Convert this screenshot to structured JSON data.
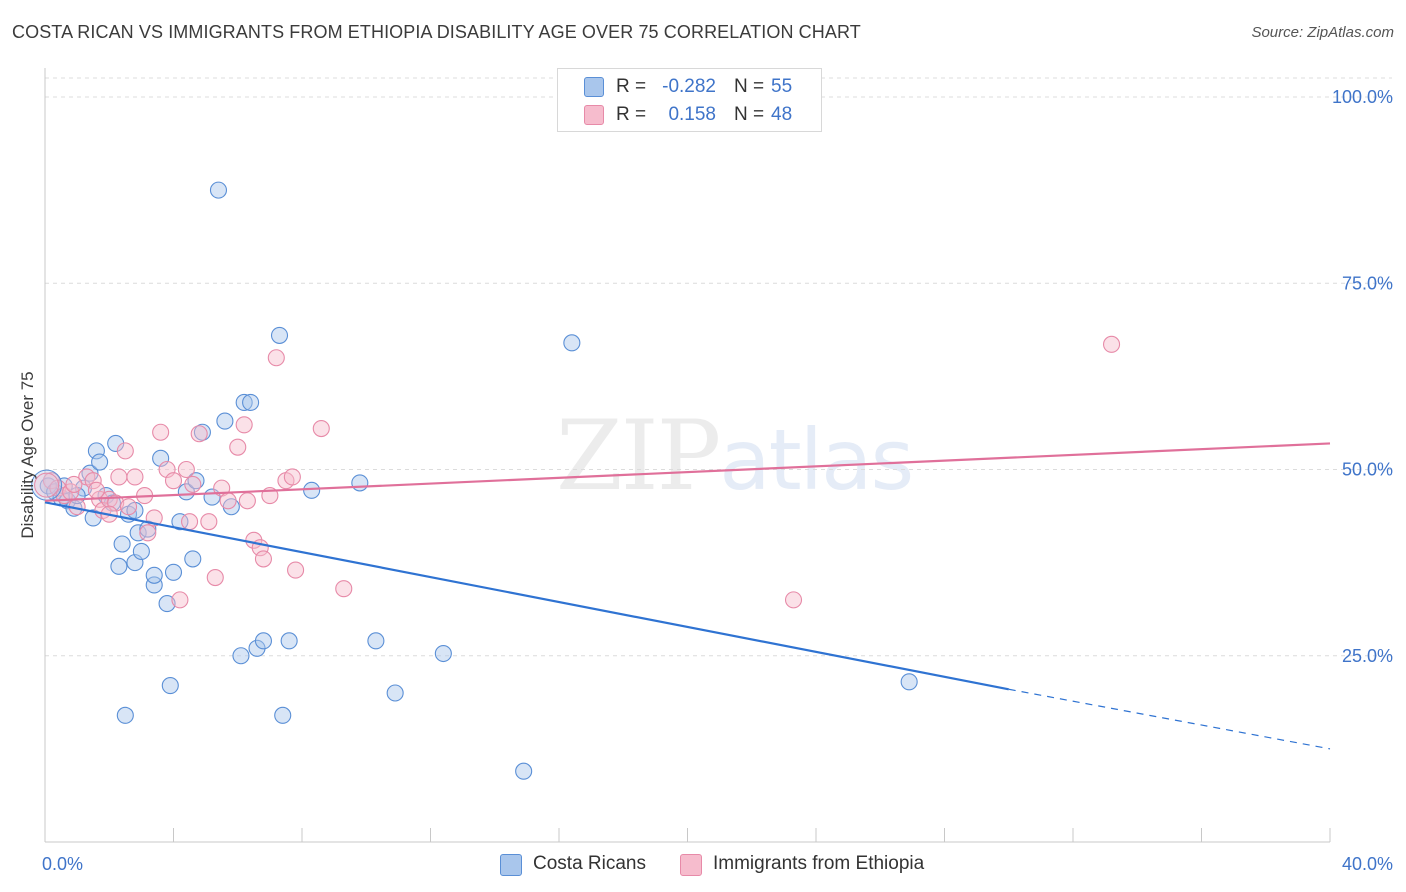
{
  "header": {
    "title": "COSTA RICAN VS IMMIGRANTS FROM ETHIOPIA DISABILITY AGE OVER 75 CORRELATION CHART",
    "source": "Source: ZipAtlas.com"
  },
  "watermark": {
    "zip": "ZIP",
    "atlas": "atlas"
  },
  "legend_top": {
    "rows": [
      {
        "r_label": "R =",
        "r_value": "-0.282",
        "n_label": "N =",
        "n_value": "55"
      },
      {
        "r_label": "R =",
        "r_value": "0.158",
        "n_label": "N =",
        "n_value": "48"
      }
    ]
  },
  "legend_bottom": {
    "items": [
      {
        "label": "Costa Ricans"
      },
      {
        "label": "Immigrants from Ethiopia"
      }
    ]
  },
  "colors": {
    "blue_fill": "#a9c6ec",
    "blue_stroke": "#5a8fd6",
    "blue_line": "#2f73d2",
    "pink_fill": "#f6bccd",
    "pink_stroke": "#e78aa8",
    "pink_line": "#e0709a",
    "grid": "#dcdcdc",
    "axis_text": "#3f74c9"
  },
  "chart_data": {
    "type": "scatter",
    "title": "COSTA RICAN VS IMMIGRANTS FROM ETHIOPIA DISABILITY AGE OVER 75 CORRELATION CHART",
    "xlabel": "",
    "ylabel": "Disability Age Over 75",
    "xlim": [
      0,
      40
    ],
    "ylim": [
      0,
      105
    ],
    "x_tick_labels": [
      {
        "value": 0,
        "label": "0.0%"
      },
      {
        "value": 40,
        "label": "40.0%"
      }
    ],
    "y_tick_labels": [
      {
        "value": 25,
        "label": "25.0%"
      },
      {
        "value": 50,
        "label": "50.0%"
      },
      {
        "value": 75,
        "label": "75.0%"
      },
      {
        "value": 100,
        "label": "100.0%"
      }
    ],
    "x_minor_ticks": [
      0,
      4,
      8,
      12,
      16,
      20,
      24,
      28,
      32,
      36,
      40
    ],
    "grid": true,
    "series": [
      {
        "name": "Costa Ricans",
        "color": "blue",
        "r": -0.282,
        "n": 55,
        "trend": {
          "x_start": 0,
          "y_start": 45.6,
          "x_solid_end": 30,
          "y_solid_end": 20.5,
          "x_end": 40,
          "y_end": 12.5
        },
        "points": [
          [
            0.1,
            47.8
          ],
          [
            0.3,
            47.0
          ],
          [
            0.5,
            46.2
          ],
          [
            0.7,
            45.8
          ],
          [
            0.9,
            44.8
          ],
          [
            1.2,
            47.5
          ],
          [
            1.4,
            49.5
          ],
          [
            1.5,
            43.5
          ],
          [
            1.6,
            52.5
          ],
          [
            1.7,
            51.0
          ],
          [
            1.9,
            46.5
          ],
          [
            2.1,
            45.5
          ],
          [
            2.2,
            53.5
          ],
          [
            2.3,
            37.0
          ],
          [
            2.4,
            40.0
          ],
          [
            2.5,
            17.0
          ],
          [
            2.6,
            44.0
          ],
          [
            2.8,
            37.5
          ],
          [
            2.9,
            41.5
          ],
          [
            3.0,
            39.0
          ],
          [
            3.2,
            42.0
          ],
          [
            3.4,
            34.5
          ],
          [
            3.4,
            35.8
          ],
          [
            3.6,
            51.5
          ],
          [
            3.8,
            32.0
          ],
          [
            3.9,
            21.0
          ],
          [
            4.0,
            36.2
          ],
          [
            4.2,
            43.0
          ],
          [
            4.4,
            47.0
          ],
          [
            4.6,
            38.0
          ],
          [
            4.7,
            48.5
          ],
          [
            4.9,
            55.0
          ],
          [
            5.2,
            46.3
          ],
          [
            5.4,
            87.5
          ],
          [
            5.6,
            56.5
          ],
          [
            5.8,
            45.0
          ],
          [
            6.1,
            25.0
          ],
          [
            6.2,
            59.0
          ],
          [
            6.4,
            59.0
          ],
          [
            6.6,
            26.0
          ],
          [
            6.8,
            27.0
          ],
          [
            7.3,
            68.0
          ],
          [
            7.4,
            17.0
          ],
          [
            7.6,
            27.0
          ],
          [
            8.3,
            47.2
          ],
          [
            9.8,
            48.2
          ],
          [
            10.3,
            27.0
          ],
          [
            10.9,
            20.0
          ],
          [
            12.4,
            25.3
          ],
          [
            14.9,
            9.5
          ],
          [
            16.4,
            67.0
          ],
          [
            26.9,
            21.5
          ],
          [
            0.6,
            47.8
          ],
          [
            1.0,
            46.5
          ],
          [
            2.8,
            44.5
          ]
        ]
      },
      {
        "name": "Immigrants from Ethiopia",
        "color": "pink",
        "r": 0.158,
        "n": 48,
        "trend": {
          "x_start": 0,
          "y_start": 45.8,
          "x_end": 40,
          "y_end": 53.5
        },
        "points": [
          [
            0.2,
            48.5
          ],
          [
            0.4,
            47.5
          ],
          [
            0.6,
            46.5
          ],
          [
            0.8,
            47.0
          ],
          [
            1.0,
            45.0
          ],
          [
            1.3,
            49.0
          ],
          [
            1.5,
            48.5
          ],
          [
            1.7,
            46.0
          ],
          [
            1.8,
            44.5
          ],
          [
            2.0,
            46.0
          ],
          [
            2.2,
            45.5
          ],
          [
            2.3,
            49.0
          ],
          [
            2.5,
            52.5
          ],
          [
            2.6,
            45.0
          ],
          [
            2.8,
            49.0
          ],
          [
            3.1,
            46.5
          ],
          [
            3.2,
            41.5
          ],
          [
            3.4,
            43.5
          ],
          [
            3.6,
            55.0
          ],
          [
            3.8,
            50.0
          ],
          [
            4.0,
            48.5
          ],
          [
            4.2,
            32.5
          ],
          [
            4.4,
            50.0
          ],
          [
            4.6,
            48.0
          ],
          [
            4.8,
            54.8
          ],
          [
            5.1,
            43.0
          ],
          [
            5.3,
            35.5
          ],
          [
            5.5,
            47.5
          ],
          [
            5.7,
            45.8
          ],
          [
            6.0,
            53.0
          ],
          [
            6.2,
            56.0
          ],
          [
            6.3,
            45.8
          ],
          [
            6.5,
            40.5
          ],
          [
            6.7,
            39.5
          ],
          [
            6.8,
            38.0
          ],
          [
            7.0,
            46.5
          ],
          [
            7.2,
            65.0
          ],
          [
            7.5,
            48.5
          ],
          [
            7.7,
            49.0
          ],
          [
            7.8,
            36.5
          ],
          [
            8.6,
            55.5
          ],
          [
            9.3,
            34.0
          ],
          [
            23.3,
            32.5
          ],
          [
            33.2,
            66.8
          ],
          [
            0.9,
            48.0
          ],
          [
            1.6,
            47.2
          ],
          [
            4.5,
            43.0
          ],
          [
            2.0,
            44.0
          ]
        ]
      }
    ]
  }
}
